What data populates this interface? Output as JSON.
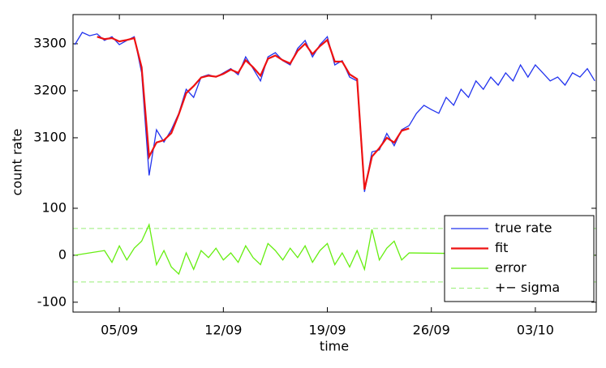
{
  "chart_data": [
    {
      "type": "line",
      "ylabel": "count rate",
      "xlim": [
        1.88,
        37.1
      ],
      "ylim": [
        2962,
        3362
      ],
      "yticks": [
        3100,
        3200,
        3300
      ],
      "series": [
        {
          "name": "true rate",
          "color": "#2233ee",
          "x": [
            2,
            2.5,
            3,
            3.5,
            4,
            4.5,
            5,
            5.5,
            6,
            6.5,
            7,
            7.5,
            8,
            8.5,
            9,
            9.5,
            10,
            10.5,
            11,
            11.5,
            12,
            12.5,
            13,
            13.5,
            14,
            14.5,
            15,
            15.5,
            16,
            16.5,
            17,
            17.5,
            18,
            18.5,
            19,
            19.5,
            20,
            20.5,
            21,
            21.5,
            22,
            22.5,
            23,
            23.5,
            24,
            24.5,
            25,
            25.5,
            26,
            26.5,
            27,
            27.5,
            28,
            28.5,
            29,
            29.5,
            30,
            30.5,
            31,
            31.5,
            32,
            32.5,
            33,
            33.5,
            34,
            34.5,
            35,
            35.5,
            36,
            36.5,
            37
          ],
          "values": [
            3298,
            3324,
            3317,
            3321,
            3307,
            3315,
            3298,
            3307,
            3315,
            3238,
            3020,
            3117,
            3091,
            3117,
            3152,
            3203,
            3186,
            3229,
            3234,
            3229,
            3238,
            3247,
            3234,
            3272,
            3247,
            3221,
            3272,
            3281,
            3264,
            3255,
            3290,
            3307,
            3272,
            3298,
            3315,
            3255,
            3264,
            3229,
            3221,
            2985,
            3070,
            3074,
            3109,
            3083,
            3117,
            3126,
            3152,
            3169,
            3160,
            3152,
            3186,
            3169,
            3203,
            3186,
            3221,
            3203,
            3229,
            3212,
            3238,
            3221,
            3255,
            3229,
            3255,
            3238,
            3221,
            3229,
            3212,
            3238,
            3229,
            3247,
            3221
          ]
        },
        {
          "name": "fit",
          "color": "#ee1111",
          "x": [
            3.5,
            4,
            4.5,
            5,
            5.5,
            6,
            6.5,
            7,
            7.5,
            8,
            8.5,
            9,
            9.5,
            10,
            10.5,
            11,
            11.5,
            12,
            12.5,
            13,
            13.5,
            14,
            14.5,
            15,
            15.5,
            16,
            16.5,
            17,
            17.5,
            18,
            18.5,
            19,
            19.5,
            20,
            20.5,
            21,
            21.5,
            22,
            22.5,
            23,
            23.5,
            24,
            24.5
          ],
          "values": [
            3315,
            3310,
            3312,
            3305,
            3308,
            3312,
            3250,
            3060,
            3090,
            3095,
            3110,
            3150,
            3195,
            3210,
            3228,
            3232,
            3230,
            3236,
            3245,
            3238,
            3265,
            3250,
            3232,
            3268,
            3275,
            3265,
            3258,
            3285,
            3300,
            3278,
            3295,
            3308,
            3262,
            3262,
            3235,
            3225,
            2990,
            3060,
            3078,
            3100,
            3090,
            3115,
            3120
          ]
        }
      ]
    },
    {
      "type": "line",
      "xlabel": "time",
      "xlim": [
        1.88,
        37.1
      ],
      "ylim": [
        -121,
        112
      ],
      "yticks": [
        -100,
        0,
        100
      ],
      "xticks": [
        {
          "value": 5,
          "label": "05/09"
        },
        {
          "value": 12,
          "label": "12/09"
        },
        {
          "value": 19,
          "label": "19/09"
        },
        {
          "value": 26,
          "label": "26/09"
        },
        {
          "value": 33,
          "label": "03/10"
        }
      ],
      "series": [
        {
          "name": "error",
          "color": "#66ee11",
          "x": [
            2,
            4,
            4.5,
            5,
            5.5,
            6,
            6.5,
            7,
            7.5,
            8,
            8.5,
            9,
            9.5,
            10,
            10.5,
            11,
            11.5,
            12,
            12.5,
            13,
            13.5,
            14,
            14.5,
            15,
            15.5,
            16,
            16.5,
            17,
            17.5,
            18,
            18.5,
            19,
            19.5,
            20,
            20.5,
            21,
            21.5,
            22,
            22.5,
            23,
            23.5,
            24,
            24.5,
            37
          ],
          "values": [
            0,
            10,
            -15,
            20,
            -10,
            15,
            30,
            65,
            -20,
            10,
            -25,
            -40,
            5,
            -30,
            10,
            -5,
            15,
            -10,
            5,
            -15,
            20,
            -5,
            -20,
            25,
            10,
            -10,
            15,
            -5,
            20,
            -15,
            10,
            25,
            -20,
            5,
            -25,
            10,
            -30,
            55,
            -10,
            15,
            30,
            -10,
            5,
            0
          ]
        }
      ],
      "sigma": 57,
      "sigma_name": "+− sigma",
      "sigma_color": "#99ee77",
      "legend": "lower right"
    }
  ]
}
